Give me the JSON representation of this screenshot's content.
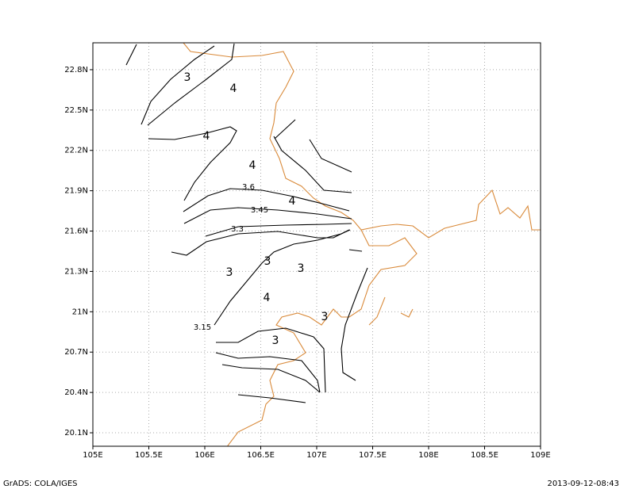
{
  "map": {
    "xlim": [
      105,
      109
    ],
    "ylim": [
      20,
      23
    ],
    "xticks": [
      {
        "value": 105,
        "label": "105E"
      },
      {
        "value": 105.5,
        "label": "105.5E"
      },
      {
        "value": 106,
        "label": "106E"
      },
      {
        "value": 106.5,
        "label": "106.5E"
      },
      {
        "value": 107,
        "label": "107E"
      },
      {
        "value": 107.5,
        "label": "107.5E"
      },
      {
        "value": 108,
        "label": "108E"
      },
      {
        "value": 108.5,
        "label": "108.5E"
      },
      {
        "value": 109,
        "label": "109E"
      }
    ],
    "yticks": [
      {
        "value": 20.1,
        "label": "20.1N"
      },
      {
        "value": 20.4,
        "label": "20.4N"
      },
      {
        "value": 20.7,
        "label": "20.7N"
      },
      {
        "value": 21,
        "label": "21N"
      },
      {
        "value": 21.3,
        "label": "21.3N"
      },
      {
        "value": 21.6,
        "label": "21.6N"
      },
      {
        "value": 21.9,
        "label": "21.9N"
      },
      {
        "value": 22.2,
        "label": "22.2N"
      },
      {
        "value": 22.5,
        "label": "22.5N"
      },
      {
        "value": 22.8,
        "label": "22.8N"
      }
    ],
    "contour_labels": [
      "3",
      "4",
      "4",
      "4",
      "3.6",
      "4",
      "3.45",
      "3.3",
      "3",
      "3",
      "3",
      "4",
      "3",
      "3.15",
      "3"
    ],
    "footer_left": "GrADS: COLA/IGES",
    "footer_right": "2013-09-12-08:43"
  }
}
